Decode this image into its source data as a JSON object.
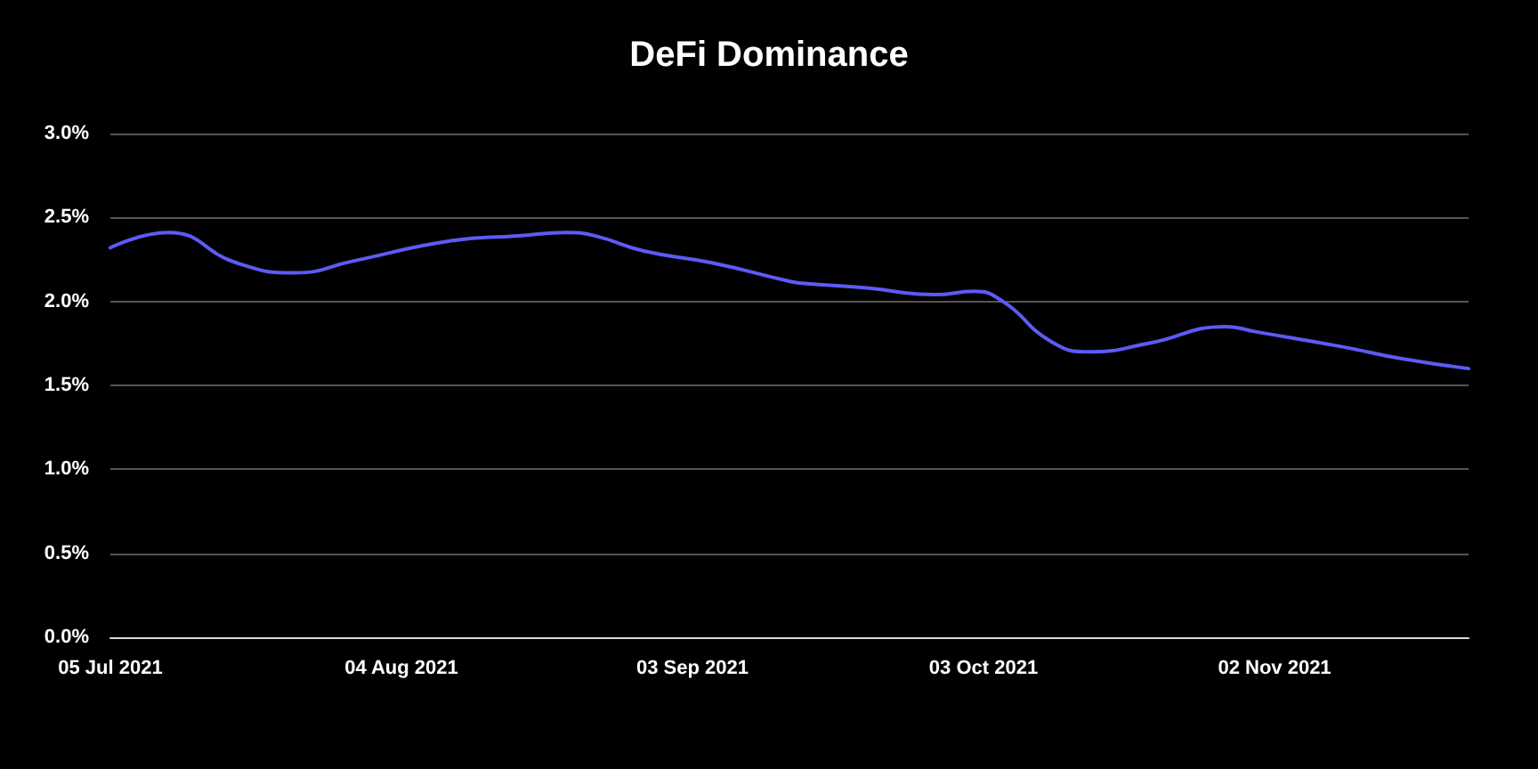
{
  "chart_data": {
    "type": "line",
    "title": "DeFi Dominance",
    "x": [
      "2021-07-05",
      "2021-07-11",
      "2021-07-18",
      "2021-07-24",
      "2021-07-30",
      "2021-08-09",
      "2021-08-16",
      "2021-08-21",
      "2021-08-24",
      "2021-08-29",
      "2021-09-05",
      "2021-09-13",
      "2021-09-14",
      "2021-09-21",
      "2021-09-28",
      "2021-10-02",
      "2021-10-05",
      "2021-10-10",
      "2021-10-14",
      "2021-10-20",
      "2021-10-28",
      "2021-10-31",
      "2021-11-09",
      "2021-11-15",
      "2021-11-22"
    ],
    "series": [
      {
        "color": "#5b5bf5",
        "values": [
          2.32,
          2.41,
          2.23,
          2.17,
          2.24,
          2.36,
          2.39,
          2.41,
          2.39,
          2.3,
          2.23,
          2.12,
          2.11,
          2.08,
          2.04,
          2.06,
          2.0,
          1.76,
          1.7,
          1.75,
          1.85,
          1.82,
          1.73,
          1.66,
          1.6
        ]
      }
    ],
    "xlim": [
      "2021-07-05",
      "2021-11-22"
    ],
    "xticks": [
      {
        "value": "2021-07-05",
        "label": "05 Jul 2021"
      },
      {
        "value": "2021-08-04",
        "label": "04 Aug 2021"
      },
      {
        "value": "2021-09-03",
        "label": "03 Sep 2021"
      },
      {
        "value": "2021-10-03",
        "label": "03 Oct 2021"
      },
      {
        "value": "2021-11-02",
        "label": "02 Nov 2021"
      }
    ],
    "ylim": [
      0,
      3
    ],
    "yticks": [
      {
        "value": 0,
        "label": "0.0%"
      },
      {
        "value": 0.5,
        "label": "0.5%"
      },
      {
        "value": 1,
        "label": "1.0%"
      },
      {
        "value": 1.5,
        "label": "1.5%"
      },
      {
        "value": 2,
        "label": "2.0%"
      },
      {
        "value": 2.5,
        "label": "2.5%"
      },
      {
        "value": 3,
        "label": "3.0%"
      }
    ],
    "grid": "y",
    "marker": "none",
    "line_style": "solid"
  }
}
